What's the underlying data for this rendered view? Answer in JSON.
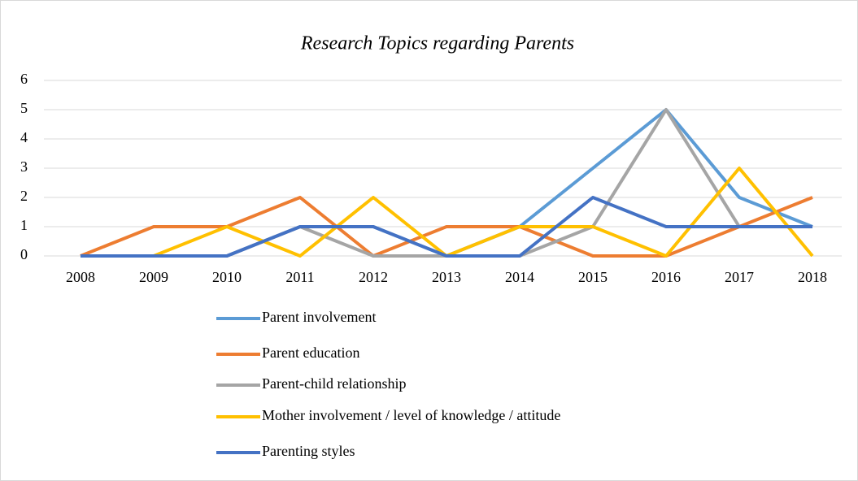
{
  "chart_data": {
    "type": "line",
    "title": "Research Topics regarding Parents",
    "categories": [
      "2008",
      "2009",
      "2010",
      "2011",
      "2012",
      "2013",
      "2014",
      "2015",
      "2016",
      "2017",
      "2018"
    ],
    "series": [
      {
        "name": "Parent involvement",
        "color": "#5b9bd5",
        "values": [
          0,
          0,
          0,
          1,
          1,
          0,
          1,
          3,
          5,
          2,
          1
        ]
      },
      {
        "name": "Parent education",
        "color": "#ed7d31",
        "values": [
          0,
          1,
          1,
          2,
          0,
          1,
          1,
          0,
          0,
          1,
          2
        ]
      },
      {
        "name": "Parent-child relationship",
        "color": "#a5a5a5",
        "values": [
          0,
          0,
          0,
          1,
          0,
          0,
          0,
          1,
          5,
          1,
          1
        ]
      },
      {
        "name": "Mother involvement / level of knowledge / attitude",
        "color": "#ffc000",
        "values": [
          0,
          0,
          1,
          0,
          2,
          0,
          1,
          1,
          0,
          3,
          0
        ]
      },
      {
        "name": "Parenting styles",
        "color": "#4472c4",
        "values": [
          0,
          0,
          0,
          1,
          1,
          0,
          0,
          2,
          1,
          1,
          1
        ]
      }
    ],
    "ylim": [
      0,
      6
    ],
    "yticks": [
      0,
      1,
      2,
      3,
      4,
      5,
      6
    ],
    "grid": true,
    "legend": "bottom"
  }
}
